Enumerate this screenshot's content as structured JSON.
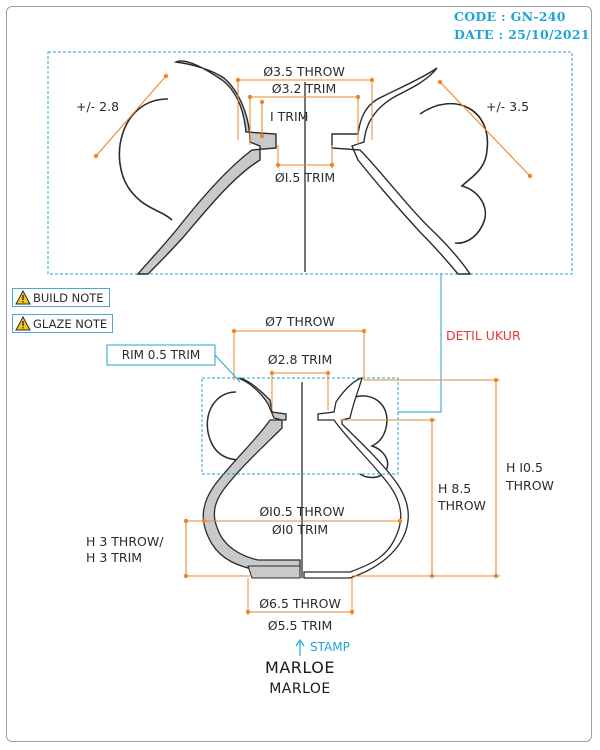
{
  "header": {
    "code": "CODE : GN-240",
    "date": "DATE : 25/10/2021"
  },
  "notes": {
    "build": "BUILD NOTE",
    "glaze": "GLAZE NOTE"
  },
  "detail": {
    "title": "DETIL UKUR",
    "left_tol": "+/- 2.8",
    "right_tol": "+/- 3.5",
    "rim_throw": "Ø3.5 THROW",
    "rim_trim": "Ø3.2 TRIM",
    "neck_height": "I TRIM",
    "neck_trim": "ØI.5 TRIM"
  },
  "main": {
    "top_throw": "Ø7 THROW",
    "rim_label": "RIM 0.5 TRIM",
    "neck_trim": "Ø2.8 TRIM",
    "belly_throw": "ØI0.5 THROW",
    "belly_trim": "ØI0 TRIM",
    "h3_line1": "H 3 THROW/",
    "h3_line2": "H 3 TRIM",
    "h85_line1": "H 8.5",
    "h85_line2": "THROW",
    "h105_line1": "H I0.5",
    "h105_line2": "THROW",
    "foot_throw": "Ø6.5 THROW",
    "foot_trim": "Ø5.5 TRIM",
    "stamp": "STAMP",
    "logo_primary": "MARLOE",
    "logo_secondary": "MARLOE"
  },
  "colors": {
    "dimension": "#e8892d",
    "accent": "#1fa3d8",
    "detail_title": "#e53935",
    "body_fill": "#c9c9c9",
    "outline": "#2b2b2b"
  }
}
